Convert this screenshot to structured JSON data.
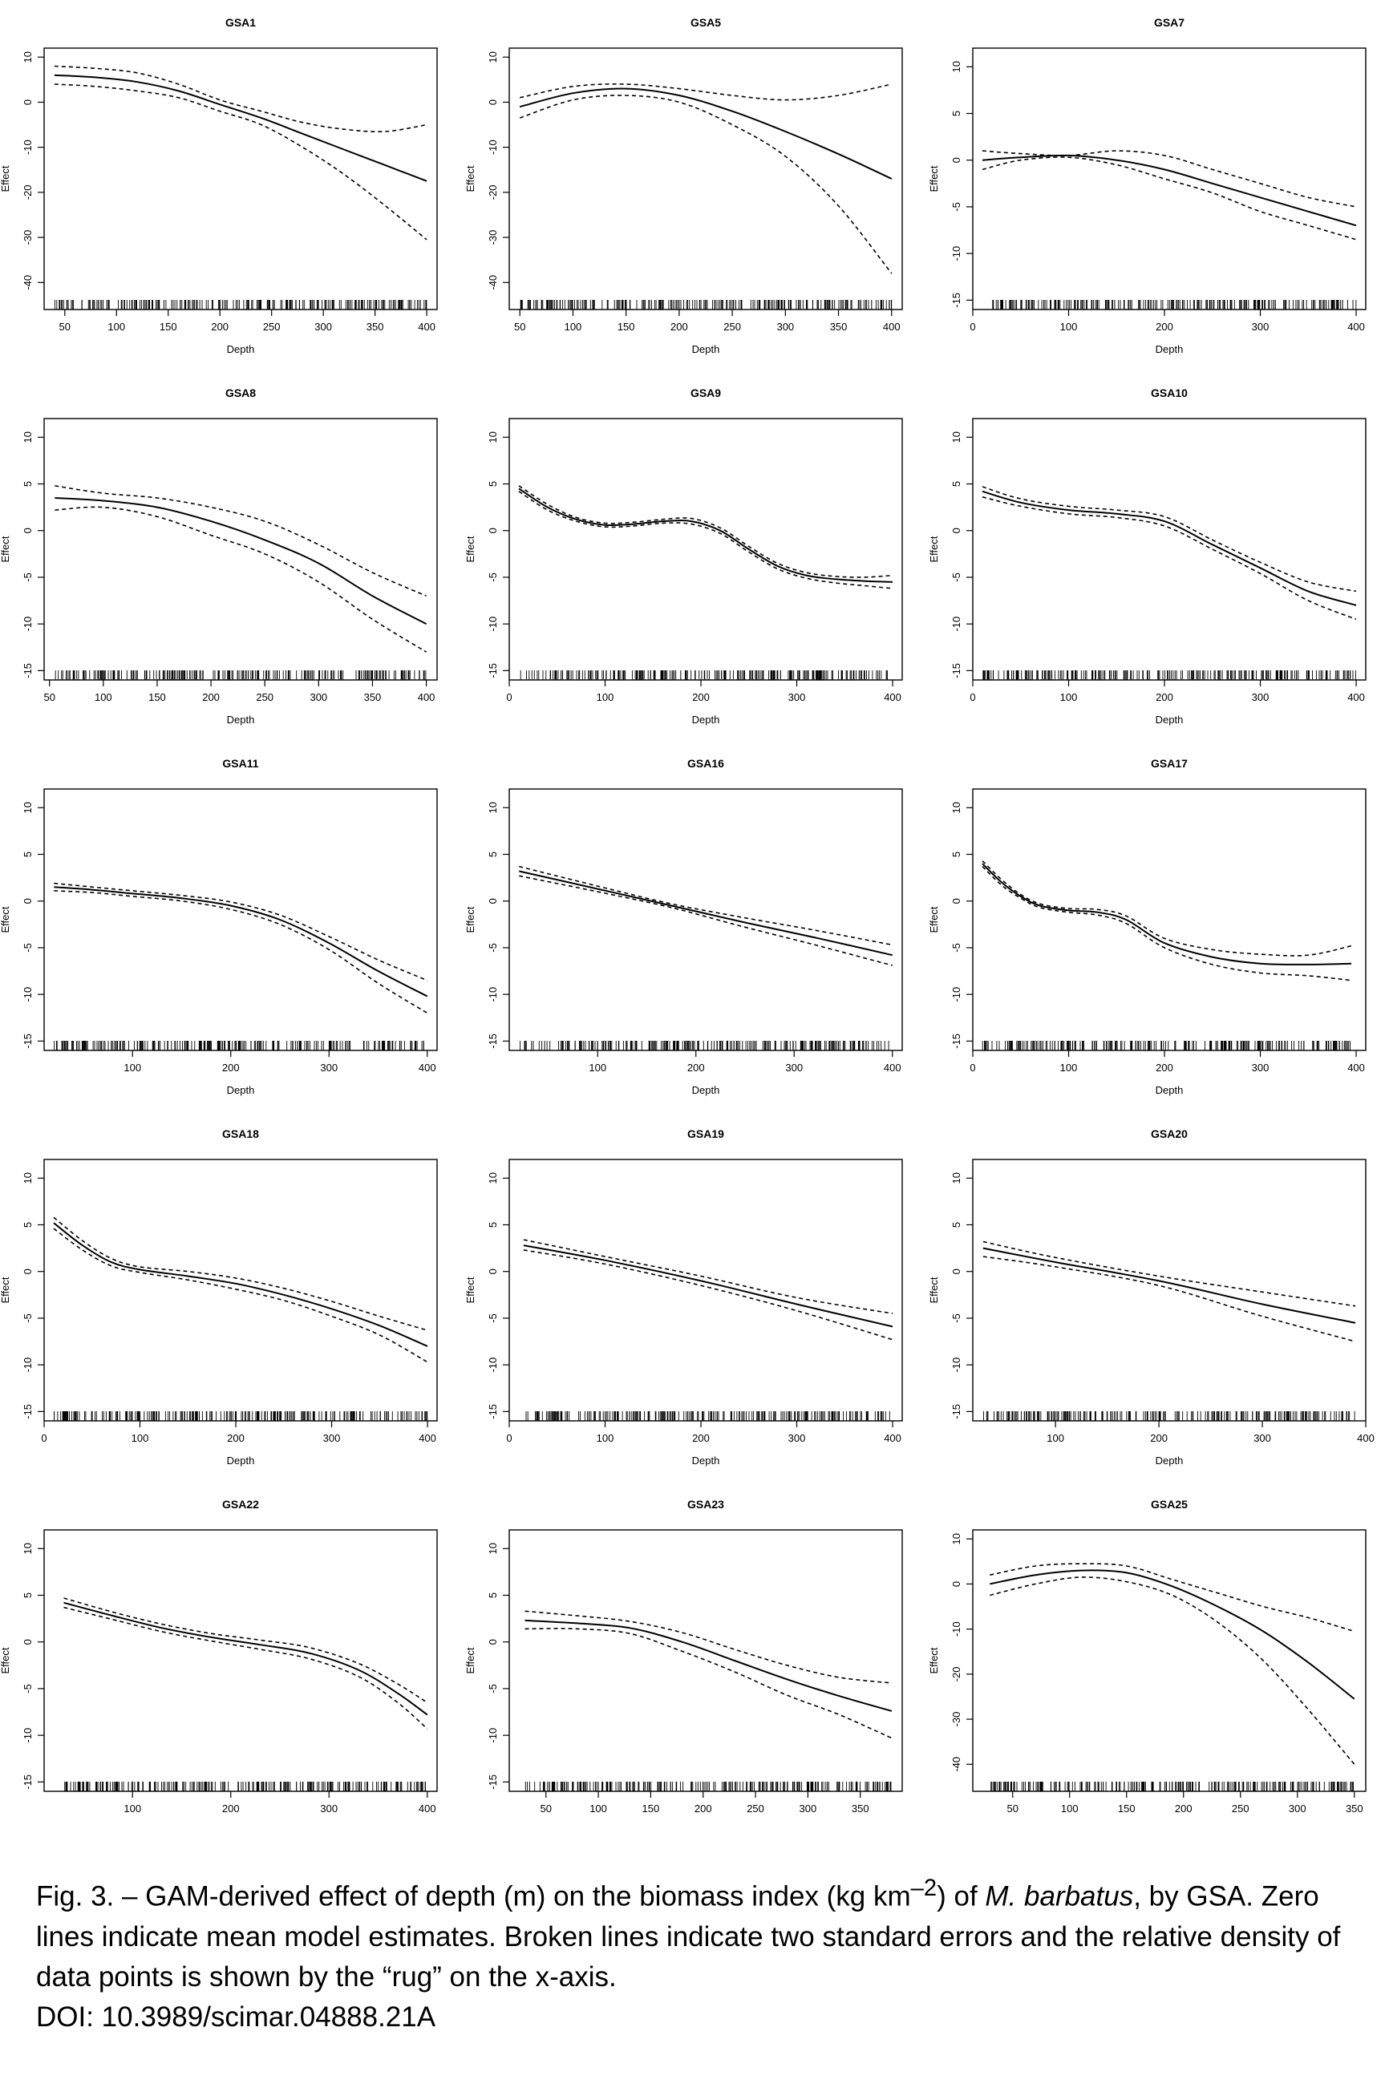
{
  "caption": {
    "part1": "Fig. 3. – GAM-derived effect of depth (m) on the biomass index (kg km",
    "sup": "–2",
    "part2": ") of ",
    "species": "M. barbatus",
    "part3": ", by GSA. Zero lines indicate mean model estimates. Broken lines indicate two standard errors and the relative density of data points is shown by the “rug” on the x-axis.",
    "doi": "DOI: 10.3989/scimar.04888.21A"
  },
  "chart_data": [
    {
      "type": "line",
      "title": "GSA1",
      "xlabel": "Depth",
      "ylabel": "Effect",
      "xlim": [
        30,
        410
      ],
      "ylim": [
        -46,
        12
      ],
      "xticks": [
        50,
        100,
        150,
        200,
        250,
        300,
        350,
        400
      ],
      "yticks": [
        10,
        0,
        -10,
        -20,
        -30,
        -40
      ],
      "x": [
        40,
        80,
        120,
        160,
        200,
        240,
        280,
        320,
        360,
        400
      ],
      "series": [
        {
          "values": [
            6,
            5.5,
            4.5,
            2.5,
            -0.5,
            -3.5,
            -7,
            -10.5,
            -14,
            -17.5
          ]
        },
        {
          "values": [
            8,
            7.5,
            6.5,
            4,
            0.5,
            -2,
            -4.5,
            -6,
            -6.5,
            -5
          ]
        },
        {
          "values": [
            4,
            3.5,
            2.5,
            1,
            -2,
            -5,
            -10,
            -16,
            -23,
            -30.5
          ]
        }
      ],
      "rug": {
        "min": 40,
        "max": 400
      }
    },
    {
      "type": "line",
      "title": "GSA5",
      "xlabel": "Depth",
      "ylabel": "Effect",
      "xlim": [
        40,
        410
      ],
      "ylim": [
        -46,
        12
      ],
      "xticks": [
        50,
        100,
        150,
        200,
        250,
        300,
        350,
        400
      ],
      "yticks": [
        10,
        0,
        -10,
        -20,
        -30,
        -40
      ],
      "x": [
        50,
        100,
        150,
        200,
        250,
        300,
        350,
        400
      ],
      "series": [
        {
          "values": [
            -1,
            2,
            3,
            1.5,
            -2,
            -6.5,
            -11.5,
            -17
          ]
        },
        {
          "values": [
            1,
            3.5,
            4,
            3,
            1.5,
            0.5,
            1.5,
            4
          ]
        },
        {
          "values": [
            -3.5,
            0.5,
            1.5,
            0,
            -5,
            -12,
            -23,
            -38
          ]
        }
      ],
      "rug": {
        "min": 50,
        "max": 400
      }
    },
    {
      "type": "line",
      "title": "GSA7",
      "xlabel": "Depth",
      "ylabel": "Effect",
      "xlim": [
        0,
        410
      ],
      "ylim": [
        -16,
        12
      ],
      "xticks": [
        0,
        100,
        200,
        300,
        400
      ],
      "yticks": [
        10,
        5,
        0,
        -5,
        -10,
        -15
      ],
      "x": [
        10,
        50,
        100,
        150,
        200,
        250,
        300,
        350,
        400
      ],
      "series": [
        {
          "values": [
            0,
            0.3,
            0.5,
            0,
            -1,
            -2.5,
            -4,
            -5.5,
            -7
          ]
        },
        {
          "values": [
            1,
            0.7,
            0.5,
            1,
            0.5,
            -1,
            -2.5,
            -4,
            -5
          ]
        },
        {
          "values": [
            -1,
            0,
            0.3,
            -0.5,
            -2,
            -3.5,
            -5.5,
            -7,
            -8.5
          ]
        }
      ],
      "rug": {
        "min": 20,
        "max": 400
      }
    },
    {
      "type": "line",
      "title": "GSA8",
      "xlabel": "Depth",
      "ylabel": "Effect",
      "xlim": [
        45,
        410
      ],
      "ylim": [
        -16,
        12
      ],
      "xticks": [
        50,
        100,
        150,
        200,
        250,
        300,
        350,
        400
      ],
      "yticks": [
        10,
        5,
        0,
        -5,
        -10,
        -15
      ],
      "x": [
        55,
        100,
        150,
        200,
        250,
        300,
        350,
        400
      ],
      "series": [
        {
          "values": [
            3.5,
            3.2,
            2.5,
            1,
            -1,
            -3.5,
            -7,
            -10
          ]
        },
        {
          "values": [
            4.8,
            4,
            3.5,
            2.5,
            1,
            -1.5,
            -4.5,
            -7
          ]
        },
        {
          "values": [
            2.2,
            2.5,
            1.5,
            -0.5,
            -2.5,
            -5.5,
            -9.5,
            -13
          ]
        }
      ],
      "rug": {
        "min": 55,
        "max": 400
      }
    },
    {
      "type": "line",
      "title": "GSA9",
      "xlabel": "Depth",
      "ylabel": "Effect",
      "xlim": [
        0,
        410
      ],
      "ylim": [
        -16,
        12
      ],
      "xticks": [
        0,
        100,
        200,
        300,
        400
      ],
      "yticks": [
        10,
        5,
        0,
        -5,
        -10,
        -15
      ],
      "x": [
        10,
        40,
        70,
        100,
        130,
        160,
        190,
        220,
        250,
        280,
        310,
        340,
        370,
        400
      ],
      "series": [
        {
          "values": [
            4.5,
            2.5,
            1.2,
            0.6,
            0.7,
            1,
            1,
            0,
            -2,
            -3.8,
            -4.8,
            -5.2,
            -5.4,
            -5.5
          ]
        },
        {
          "values": [
            4.8,
            2.8,
            1.4,
            0.8,
            0.9,
            1.2,
            1.3,
            0.3,
            -1.7,
            -3.5,
            -4.5,
            -4.9,
            -5,
            -4.8
          ]
        },
        {
          "values": [
            4.2,
            2.2,
            1,
            0.4,
            0.5,
            0.8,
            0.7,
            -0.3,
            -2.3,
            -4.1,
            -5.1,
            -5.6,
            -5.9,
            -6.2
          ]
        }
      ],
      "rug": {
        "min": 10,
        "max": 400
      }
    },
    {
      "type": "line",
      "title": "GSA10",
      "xlabel": "Depth",
      "ylabel": "Effect",
      "xlim": [
        0,
        410
      ],
      "ylim": [
        -16,
        12
      ],
      "xticks": [
        0,
        100,
        200,
        300,
        400
      ],
      "yticks": [
        10,
        5,
        0,
        -5,
        -10,
        -15
      ],
      "x": [
        10,
        50,
        100,
        150,
        200,
        250,
        300,
        350,
        400
      ],
      "series": [
        {
          "values": [
            4.2,
            3,
            2.2,
            1.8,
            1,
            -1.5,
            -4,
            -6.5,
            -8
          ]
        },
        {
          "values": [
            4.7,
            3.4,
            2.6,
            2.2,
            1.5,
            -1,
            -3.4,
            -5.5,
            -6.5
          ]
        },
        {
          "values": [
            3.6,
            2.6,
            1.8,
            1.4,
            0.5,
            -2,
            -4.6,
            -7.5,
            -9.5
          ]
        }
      ],
      "rug": {
        "min": 10,
        "max": 400
      }
    },
    {
      "type": "line",
      "title": "GSA11",
      "xlabel": "Depth",
      "ylabel": "Effect",
      "xlim": [
        10,
        410
      ],
      "ylim": [
        -16,
        12
      ],
      "xticks": [
        100,
        200,
        300,
        400
      ],
      "yticks": [
        10,
        5,
        0,
        -5,
        -10,
        -15
      ],
      "x": [
        20,
        60,
        100,
        150,
        200,
        250,
        300,
        350,
        400
      ],
      "series": [
        {
          "values": [
            1.5,
            1.2,
            0.8,
            0.3,
            -0.5,
            -2,
            -4.5,
            -7.5,
            -10.2
          ]
        },
        {
          "values": [
            1.9,
            1.5,
            1.1,
            0.6,
            -0.1,
            -1.5,
            -3.8,
            -6.3,
            -8.5
          ]
        },
        {
          "values": [
            1.1,
            0.9,
            0.5,
            0,
            -0.9,
            -2.5,
            -5.2,
            -8.8,
            -12
          ]
        }
      ],
      "rug": {
        "min": 20,
        "max": 400
      }
    },
    {
      "type": "line",
      "title": "GSA16",
      "xlabel": "Depth",
      "ylabel": "Effect",
      "xlim": [
        10,
        410
      ],
      "ylim": [
        -16,
        12
      ],
      "xticks": [
        100,
        200,
        300,
        400
      ],
      "yticks": [
        10,
        5,
        0,
        -5,
        -10,
        -15
      ],
      "x": [
        20,
        100,
        175,
        250,
        325,
        400
      ],
      "series": [
        {
          "values": [
            3.2,
            1.3,
            -0.5,
            -2.3,
            -4,
            -5.8
          ]
        },
        {
          "values": [
            3.7,
            1.6,
            -0.3,
            -1.8,
            -3.2,
            -4.7
          ]
        },
        {
          "values": [
            2.7,
            1,
            -0.7,
            -2.8,
            -4.8,
            -6.9
          ]
        }
      ],
      "rug": {
        "min": 20,
        "max": 400
      }
    },
    {
      "type": "line",
      "title": "GSA17",
      "xlabel": "Depth",
      "ylabel": "Effect",
      "xlim": [
        0,
        410
      ],
      "ylim": [
        -16,
        12
      ],
      "xticks": [
        0,
        100,
        200,
        300,
        400
      ],
      "yticks": [
        10,
        5,
        0,
        -5,
        -10,
        -15
      ],
      "x": [
        10,
        30,
        50,
        70,
        100,
        130,
        160,
        200,
        250,
        300,
        350,
        395
      ],
      "series": [
        {
          "values": [
            4,
            2,
            0.5,
            -0.5,
            -1,
            -1.2,
            -2,
            -4.5,
            -6,
            -6.7,
            -6.8,
            -6.7
          ]
        },
        {
          "values": [
            4.3,
            2.3,
            0.7,
            -0.3,
            -0.8,
            -0.9,
            -1.6,
            -4,
            -5.2,
            -5.7,
            -5.8,
            -4.8
          ]
        },
        {
          "values": [
            3.7,
            1.7,
            0.3,
            -0.7,
            -1.2,
            -1.5,
            -2.4,
            -5,
            -6.8,
            -7.7,
            -8,
            -8.5
          ]
        }
      ],
      "rug": {
        "min": 10,
        "max": 395
      }
    },
    {
      "type": "line",
      "title": "GSA18",
      "xlabel": "Depth",
      "ylabel": "Effect",
      "xlim": [
        0,
        410
      ],
      "ylim": [
        -16,
        12
      ],
      "xticks": [
        0,
        100,
        200,
        300,
        400
      ],
      "yticks": [
        10,
        5,
        0,
        -5,
        -10,
        -15
      ],
      "x": [
        10,
        40,
        70,
        100,
        150,
        200,
        250,
        300,
        350,
        400
      ],
      "series": [
        {
          "values": [
            5.2,
            2.8,
            1,
            0.2,
            -0.5,
            -1.3,
            -2.5,
            -4,
            -5.8,
            -8
          ]
        },
        {
          "values": [
            5.8,
            3.3,
            1.4,
            0.5,
            0,
            -0.7,
            -1.8,
            -3.2,
            -4.8,
            -6.3
          ]
        },
        {
          "values": [
            4.6,
            2.3,
            0.6,
            -0.1,
            -0.9,
            -1.9,
            -3.1,
            -4.8,
            -6.8,
            -9.7
          ]
        }
      ],
      "rug": {
        "min": 10,
        "max": 400
      }
    },
    {
      "type": "line",
      "title": "GSA19",
      "xlabel": "Depth",
      "ylabel": "Effect",
      "xlim": [
        0,
        410
      ],
      "ylim": [
        -16,
        12
      ],
      "xticks": [
        0,
        100,
        200,
        300,
        400
      ],
      "yticks": [
        10,
        5,
        0,
        -5,
        -10,
        -15
      ],
      "x": [
        15,
        100,
        200,
        300,
        400
      ],
      "series": [
        {
          "values": [
            2.8,
            1.2,
            -1,
            -3.5,
            -5.9
          ]
        },
        {
          "values": [
            3.4,
            1.6,
            -0.5,
            -2.8,
            -4.5
          ]
        },
        {
          "values": [
            2.3,
            0.8,
            -1.5,
            -4.2,
            -7.3
          ]
        }
      ],
      "rug": {
        "min": 15,
        "max": 400
      }
    },
    {
      "type": "line",
      "title": "GSA20",
      "xlabel": "Depth",
      "ylabel": "Effect",
      "xlim": [
        20,
        400
      ],
      "ylim": [
        -16,
        12
      ],
      "xticks": [
        100,
        200,
        300,
        400
      ],
      "yticks": [
        10,
        5,
        0,
        -5,
        -10,
        -15
      ],
      "x": [
        30,
        100,
        200,
        300,
        390
      ],
      "series": [
        {
          "values": [
            2.5,
            1,
            -1,
            -3.5,
            -5.5
          ]
        },
        {
          "values": [
            3.2,
            1.5,
            -0.5,
            -2.2,
            -3.7
          ]
        },
        {
          "values": [
            1.6,
            0.5,
            -1.5,
            -4.8,
            -7.5
          ]
        }
      ],
      "rug": {
        "min": 30,
        "max": 390
      }
    },
    {
      "type": "line",
      "title": "GSA22",
      "xlabel": "Depth",
      "ylabel": "Effect",
      "xlim": [
        10,
        410
      ],
      "ylim": [
        -16,
        12
      ],
      "xticks": [
        100,
        200,
        300,
        400
      ],
      "yticks": [
        10,
        5,
        0,
        -5,
        -10,
        -15
      ],
      "x": [
        30,
        80,
        130,
        180,
        230,
        280,
        330,
        370,
        400
      ],
      "series": [
        {
          "values": [
            4.2,
            2.8,
            1.5,
            0.5,
            -0.3,
            -1.2,
            -3,
            -5.5,
            -7.8
          ]
        },
        {
          "values": [
            4.7,
            3.2,
            1.9,
            0.9,
            0.2,
            -0.6,
            -2.3,
            -4.5,
            -6.5
          ]
        },
        {
          "values": [
            3.7,
            2.4,
            1.1,
            0.1,
            -0.8,
            -1.8,
            -3.7,
            -6.5,
            -9.3
          ]
        }
      ],
      "rug": {
        "min": 30,
        "max": 400
      }
    },
    {
      "type": "line",
      "title": "GSA23",
      "xlabel": "Depth",
      "ylabel": "Effect",
      "xlim": [
        15,
        390
      ],
      "ylim": [
        -16,
        12
      ],
      "xticks": [
        50,
        100,
        150,
        200,
        250,
        300,
        350
      ],
      "yticks": [
        10,
        5,
        0,
        -5,
        -10,
        -15
      ],
      "x": [
        30,
        80,
        130,
        180,
        230,
        280,
        330,
        380
      ],
      "series": [
        {
          "values": [
            2.3,
            2,
            1.5,
            0,
            -2,
            -4,
            -5.8,
            -7.4
          ]
        },
        {
          "values": [
            3.3,
            2.8,
            2.2,
            1,
            -0.8,
            -2.5,
            -3.8,
            -4.4
          ]
        },
        {
          "values": [
            1.4,
            1.4,
            0.9,
            -1,
            -3.2,
            -5.7,
            -7.8,
            -10.3
          ]
        }
      ],
      "rug": {
        "min": 30,
        "max": 380
      }
    },
    {
      "type": "line",
      "title": "GSA25",
      "xlabel": "Depth",
      "ylabel": "Effect",
      "xlim": [
        15,
        360
      ],
      "ylim": [
        -46,
        12
      ],
      "xticks": [
        50,
        100,
        150,
        200,
        250,
        300,
        350
      ],
      "yticks": [
        10,
        0,
        -10,
        -20,
        -30,
        -40
      ],
      "x": [
        30,
        70,
        110,
        150,
        190,
        230,
        270,
        310,
        350
      ],
      "series": [
        {
          "values": [
            0,
            2,
            3,
            2.5,
            -0.5,
            -5,
            -10.5,
            -17.5,
            -25.5
          ]
        },
        {
          "values": [
            2,
            4,
            4.5,
            4,
            1,
            -2,
            -5,
            -7.5,
            -10.5
          ]
        },
        {
          "values": [
            -2.5,
            0,
            1.5,
            0.5,
            -2.5,
            -8.5,
            -17,
            -28,
            -40
          ]
        }
      ],
      "rug": {
        "min": 30,
        "max": 350
      }
    }
  ]
}
